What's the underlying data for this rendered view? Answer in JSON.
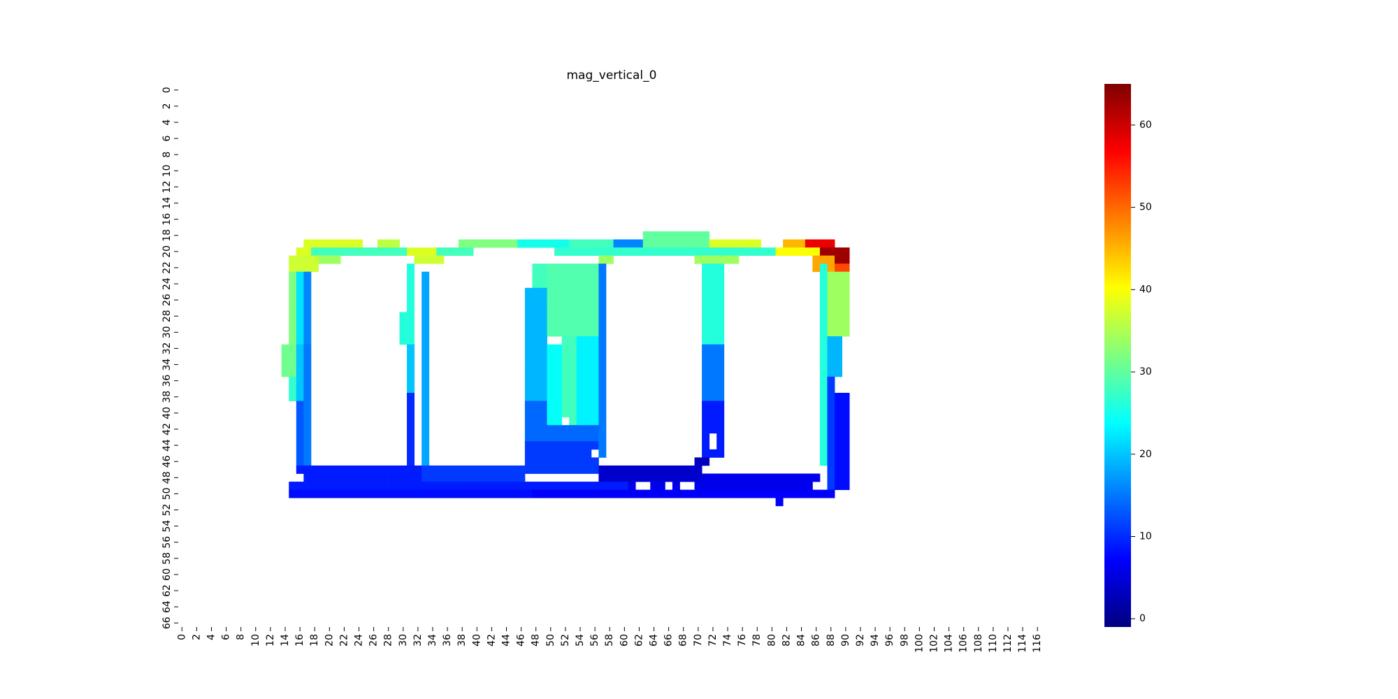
{
  "chart_data": {
    "type": "heatmap",
    "title": "mag_vertical_0",
    "xlabel": "",
    "ylabel": "",
    "n_cols": 118,
    "n_rows": 67,
    "x_tick_step": 2,
    "y_tick_step": 2,
    "colormap": "jet",
    "color_range": [
      -1,
      65
    ],
    "colorbar_ticks": [
      0,
      10,
      20,
      30,
      40,
      50,
      60
    ],
    "grid": false,
    "colorbar_position": "right",
    "regions": [
      {
        "rows": [
          19,
          19
        ],
        "cols": [
          17,
          24
        ],
        "value": 38
      },
      {
        "rows": [
          19,
          19
        ],
        "cols": [
          27,
          29
        ],
        "value": 36
      },
      {
        "rows": [
          19,
          19
        ],
        "cols": [
          38,
          45
        ],
        "value": 32
      },
      {
        "rows": [
          19,
          19
        ],
        "cols": [
          46,
          52
        ],
        "value": 25
      },
      {
        "rows": [
          19,
          19
        ],
        "cols": [
          53,
          58
        ],
        "value": 28
      },
      {
        "rows": [
          19,
          19
        ],
        "cols": [
          59,
          62
        ],
        "value": 16
      },
      {
        "rows": [
          18,
          19
        ],
        "cols": [
          63,
          71
        ],
        "value": 30
      },
      {
        "rows": [
          19,
          19
        ],
        "cols": [
          72,
          78
        ],
        "value": 38
      },
      {
        "rows": [
          19,
          19
        ],
        "cols": [
          82,
          84
        ],
        "value": 45
      },
      {
        "rows": [
          19,
          19
        ],
        "cols": [
          85,
          88
        ],
        "value": 58
      },
      {
        "rows": [
          20,
          20
        ],
        "cols": [
          16,
          17
        ],
        "value": 38
      },
      {
        "rows": [
          20,
          20
        ],
        "cols": [
          18,
          30
        ],
        "value": 28
      },
      {
        "rows": [
          20,
          20
        ],
        "cols": [
          31,
          34
        ],
        "value": 38
      },
      {
        "rows": [
          20,
          20
        ],
        "cols": [
          35,
          39
        ],
        "value": 28
      },
      {
        "rows": [
          20,
          20
        ],
        "cols": [
          51,
          80
        ],
        "value": 27
      },
      {
        "rows": [
          20,
          20
        ],
        "cols": [
          81,
          86
        ],
        "value": 40
      },
      {
        "rows": [
          20,
          21
        ],
        "cols": [
          87,
          90
        ],
        "value": 63
      },
      {
        "rows": [
          21,
          22
        ],
        "cols": [
          15,
          18
        ],
        "value": 37
      },
      {
        "rows": [
          21,
          21
        ],
        "cols": [
          19,
          21
        ],
        "value": 34
      },
      {
        "rows": [
          21,
          21
        ],
        "cols": [
          32,
          35
        ],
        "value": 37
      },
      {
        "rows": [
          21,
          21
        ],
        "cols": [
          57,
          58
        ],
        "value": 34
      },
      {
        "rows": [
          21,
          21
        ],
        "cols": [
          70,
          75
        ],
        "value": 34
      },
      {
        "rows": [
          21,
          22
        ],
        "cols": [
          86,
          88
        ],
        "value": 46
      },
      {
        "rows": [
          22,
          23
        ],
        "cols": [
          89,
          90
        ],
        "value": 52
      },
      {
        "rows": [
          23,
          31
        ],
        "cols": [
          15,
          15
        ],
        "value": 32
      },
      {
        "rows": [
          23,
          31
        ],
        "cols": [
          16,
          16
        ],
        "value": 22
      },
      {
        "rows": [
          23,
          31
        ],
        "cols": [
          17,
          17
        ],
        "value": 16
      },
      {
        "rows": [
          32,
          35
        ],
        "cols": [
          14,
          15
        ],
        "value": 31
      },
      {
        "rows": [
          32,
          38
        ],
        "cols": [
          16,
          16
        ],
        "value": 20
      },
      {
        "rows": [
          32,
          46
        ],
        "cols": [
          17,
          17
        ],
        "value": 15
      },
      {
        "rows": [
          36,
          38
        ],
        "cols": [
          15,
          15
        ],
        "value": 27
      },
      {
        "rows": [
          39,
          46
        ],
        "cols": [
          16,
          16
        ],
        "value": 13
      },
      {
        "rows": [
          47,
          47
        ],
        "cols": [
          16,
          17
        ],
        "value": 9
      },
      {
        "rows": [
          22,
          31
        ],
        "cols": [
          31,
          31
        ],
        "value": 26
      },
      {
        "rows": [
          28,
          31
        ],
        "cols": [
          30,
          30
        ],
        "value": 26
      },
      {
        "rows": [
          32,
          37
        ],
        "cols": [
          31,
          31
        ],
        "value": 20
      },
      {
        "rows": [
          38,
          46
        ],
        "cols": [
          31,
          31
        ],
        "value": 10
      },
      {
        "rows": [
          23,
          46
        ],
        "cols": [
          33,
          33
        ],
        "value": 18
      },
      {
        "rows": [
          22,
          26
        ],
        "cols": [
          48,
          49
        ],
        "value": 28
      },
      {
        "rows": [
          22,
          30
        ],
        "cols": [
          50,
          56
        ],
        "value": 29
      },
      {
        "rows": [
          25,
          38
        ],
        "cols": [
          47,
          49
        ],
        "value": 19
      },
      {
        "rows": [
          31,
          41
        ],
        "cols": [
          50,
          51
        ],
        "value": 24
      },
      {
        "rows": [
          31,
          41
        ],
        "cols": [
          52,
          53
        ],
        "value": 28
      },
      {
        "rows": [
          31,
          41
        ],
        "cols": [
          54,
          56
        ],
        "value": 23
      },
      {
        "rows": [
          39,
          43
        ],
        "cols": [
          47,
          49
        ],
        "value": 14
      },
      {
        "rows": [
          42,
          45
        ],
        "cols": [
          50,
          57
        ],
        "value": 14
      },
      {
        "rows": [
          44,
          47
        ],
        "cols": [
          47,
          56
        ],
        "value": 11
      },
      {
        "rows": [
          22,
          45
        ],
        "cols": [
          57,
          57
        ],
        "value": 15
      },
      {
        "rows": [
          22,
          31
        ],
        "cols": [
          71,
          73
        ],
        "value": 26
      },
      {
        "rows": [
          32,
          38
        ],
        "cols": [
          71,
          73
        ],
        "value": 15
      },
      {
        "rows": [
          39,
          45
        ],
        "cols": [
          71,
          73
        ],
        "value": 9
      },
      {
        "rows": [
          46,
          46
        ],
        "cols": [
          70,
          71
        ],
        "value": 3
      },
      {
        "rows": [
          22,
          46
        ],
        "cols": [
          87,
          87
        ],
        "value": 26
      },
      {
        "rows": [
          23,
          30
        ],
        "cols": [
          88,
          90
        ],
        "value": 34
      },
      {
        "rows": [
          31,
          35
        ],
        "cols": [
          88,
          89
        ],
        "value": 19
      },
      {
        "rows": [
          36,
          49
        ],
        "cols": [
          88,
          88
        ],
        "value": 11
      },
      {
        "rows": [
          38,
          49
        ],
        "cols": [
          89,
          90
        ],
        "value": 8
      },
      {
        "rows": [
          47,
          48
        ],
        "cols": [
          17,
          32
        ],
        "value": 9
      },
      {
        "rows": [
          47,
          48
        ],
        "cols": [
          33,
          46
        ],
        "value": 11
      },
      {
        "rows": [
          47,
          48
        ],
        "cols": [
          57,
          70
        ],
        "value": 4
      },
      {
        "rows": [
          48,
          48
        ],
        "cols": [
          71,
          86
        ],
        "value": 6
      },
      {
        "rows": [
          49,
          49
        ],
        "cols": [
          15,
          60
        ],
        "value": 9
      },
      {
        "rows": [
          49,
          49
        ],
        "cols": [
          61,
          85
        ],
        "value": 6
      },
      {
        "rows": [
          50,
          50
        ],
        "cols": [
          15,
          47
        ],
        "value": 8
      },
      {
        "rows": [
          50,
          50
        ],
        "cols": [
          48,
          88
        ],
        "value": 7
      },
      {
        "rows": [
          51,
          51
        ],
        "cols": [
          81,
          81
        ],
        "value": 7
      }
    ],
    "blank_cells": [
      [
        41,
        52
      ],
      [
        45,
        32
      ],
      [
        45,
        56
      ],
      [
        44,
        72
      ],
      [
        43,
        72
      ],
      [
        49,
        62
      ],
      [
        49,
        63
      ],
      [
        49,
        66
      ],
      [
        49,
        68
      ],
      [
        49,
        69
      ],
      [
        49,
        86
      ],
      [
        31,
        51
      ],
      [
        31,
        50
      ]
    ]
  }
}
